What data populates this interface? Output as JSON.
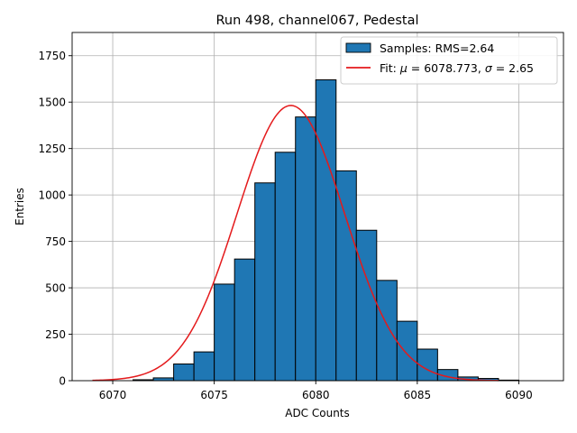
{
  "chart_data": {
    "type": "bar",
    "title": "Run 498, channel067, Pedestal",
    "xlabel": "ADC Counts",
    "ylabel": "Entries",
    "xlim": [
      6068.0,
      6092.2
    ],
    "ylim": [
      0,
      1875
    ],
    "xticks": [
      6070,
      6075,
      6080,
      6085,
      6090
    ],
    "yticks": [
      0,
      250,
      500,
      750,
      1000,
      1250,
      1500,
      1750
    ],
    "grid": true,
    "legend_position": "top-right",
    "bin_width": 1,
    "bins": [
      {
        "x": 6071,
        "value": 5
      },
      {
        "x": 6072,
        "value": 15
      },
      {
        "x": 6073,
        "value": 90
      },
      {
        "x": 6074,
        "value": 155
      },
      {
        "x": 6075,
        "value": 520
      },
      {
        "x": 6076,
        "value": 655
      },
      {
        "x": 6077,
        "value": 1065
      },
      {
        "x": 6078,
        "value": 1230
      },
      {
        "x": 6079,
        "value": 1420
      },
      {
        "x": 6080,
        "value": 1620
      },
      {
        "x": 6081,
        "value": 1130
      },
      {
        "x": 6082,
        "value": 810
      },
      {
        "x": 6083,
        "value": 540
      },
      {
        "x": 6084,
        "value": 320
      },
      {
        "x": 6085,
        "value": 170
      },
      {
        "x": 6086,
        "value": 60
      },
      {
        "x": 6087,
        "value": 20
      },
      {
        "x": 6088,
        "value": 12
      },
      {
        "x": 6089,
        "value": 3
      }
    ],
    "histogram_color": "#1f77b4",
    "fit": {
      "mu": 6078.773,
      "sigma": 2.65,
      "amplitude": 1482,
      "x_range": [
        6069,
        6089
      ],
      "color": "#e41a1c"
    },
    "legend": [
      {
        "label": "Samples: RMS=2.64",
        "kind": "patch",
        "color": "#1f77b4"
      },
      {
        "label_prefix": "Fit: ",
        "mu_symbol": "μ",
        "mu_text": " = 6078.773, ",
        "sigma_symbol": "σ",
        "sigma_text": " = 2.65",
        "kind": "line",
        "color": "#e41a1c"
      }
    ]
  }
}
